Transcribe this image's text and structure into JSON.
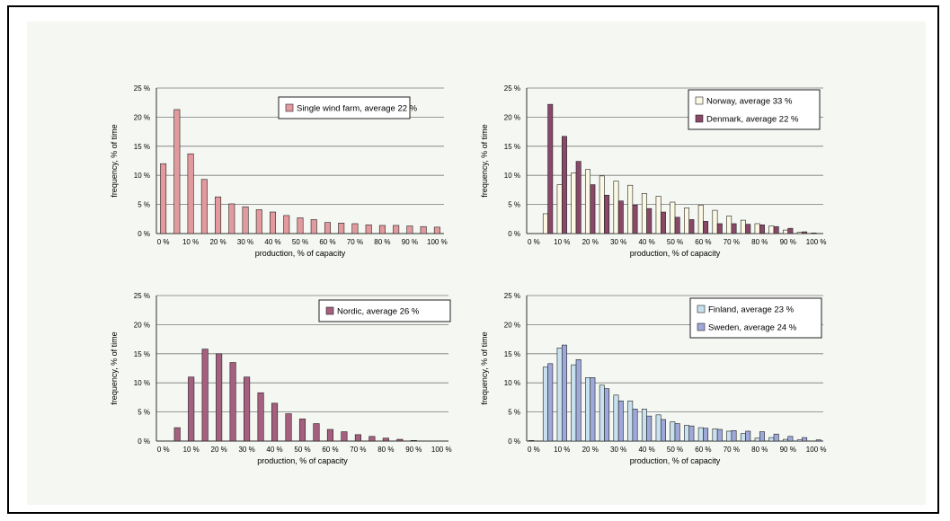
{
  "colors": {
    "background": "#f4f7f2",
    "grid": "#7a7a7a",
    "pink": "#e29a9e",
    "cream": "#fbf8e4",
    "plum": "#8a4868",
    "mauve": "#a4607e",
    "lightblue": "#c8e1ee",
    "periwinkle": "#9ea8d9",
    "bar_stroke": "#222222"
  },
  "chart_data": [
    {
      "type": "bar",
      "x": [
        0,
        5,
        10,
        15,
        20,
        25,
        30,
        35,
        40,
        45,
        50,
        55,
        60,
        65,
        70,
        75,
        80,
        85,
        90,
        95,
        100
      ],
      "x_tick_labels": [
        "0 %",
        "10 %",
        "20 %",
        "30 %",
        "40 %",
        "50 %",
        "60 %",
        "70 %",
        "80 %",
        "90 %",
        "100 %"
      ],
      "y_tick_labels": [
        "0 %",
        "5 %",
        "10 %",
        "15 %",
        "20 %",
        "25 %"
      ],
      "xlabel": "production, % of capacity",
      "ylabel": "frequency, % of time",
      "ylim": [
        0,
        25
      ],
      "grid": true,
      "legend_position": "top-right",
      "series": [
        {
          "name": "Single wind farm, average 22 %",
          "color": "#e29a9e",
          "values": [
            12.0,
            21.3,
            13.7,
            9.3,
            6.3,
            5.1,
            4.6,
            4.1,
            3.7,
            3.1,
            2.7,
            2.4,
            1.9,
            1.8,
            1.7,
            1.5,
            1.4,
            1.4,
            1.3,
            1.2,
            1.1
          ]
        }
      ]
    },
    {
      "type": "bar",
      "x": [
        0,
        5,
        10,
        15,
        20,
        25,
        30,
        35,
        40,
        45,
        50,
        55,
        60,
        65,
        70,
        75,
        80,
        85,
        90,
        95,
        100
      ],
      "x_tick_labels": [
        "0 %",
        "10 %",
        "20 %",
        "30 %",
        "40 %",
        "50 %",
        "60 %",
        "70 %",
        "80 %",
        "90 %",
        "100 %"
      ],
      "y_tick_labels": [
        "0 %",
        "5 %",
        "10 %",
        "15 %",
        "20 %",
        "25 %"
      ],
      "xlabel": "production, % of capacity",
      "ylabel": "frequency, % of time",
      "ylim": [
        0,
        25
      ],
      "grid": true,
      "legend_position": "top-right",
      "series": [
        {
          "name": "Norway, average 33 %",
          "color": "#fbf8e4",
          "values": [
            0,
            3.4,
            8.4,
            10.4,
            11.0,
            9.9,
            9.0,
            8.3,
            6.9,
            6.4,
            5.4,
            4.4,
            4.9,
            4.0,
            3.0,
            2.3,
            1.7,
            1.3,
            0.6,
            0.2,
            0.1
          ]
        },
        {
          "name": "Denmark, average 22 %",
          "color": "#8a4868",
          "values": [
            0,
            22.2,
            16.7,
            12.4,
            8.4,
            6.6,
            5.6,
            4.9,
            4.3,
            3.7,
            2.8,
            2.4,
            2.1,
            1.7,
            1.7,
            1.6,
            1.5,
            1.2,
            0.9,
            0.3,
            0
          ]
        }
      ]
    },
    {
      "type": "bar",
      "x": [
        0,
        5,
        10,
        15,
        20,
        25,
        30,
        35,
        40,
        45,
        50,
        55,
        60,
        65,
        70,
        75,
        80,
        85,
        90,
        95,
        100
      ],
      "x_tick_labels": [
        "0 %",
        "10 %",
        "20 %",
        "30 %",
        "40 %",
        "50 %",
        "60 %",
        "70 %",
        "80 %",
        "90 %",
        "100 %"
      ],
      "y_tick_labels": [
        "0 %",
        "5 %",
        "10 %",
        "15 %",
        "20 %",
        "25 %"
      ],
      "xlabel": "production, % of capacity",
      "ylabel": "frequency, % of time",
      "ylim": [
        0,
        25
      ],
      "grid": true,
      "legend_position": "top-right",
      "series": [
        {
          "name": "Nordic, average 26 %",
          "color": "#a4607e",
          "values": [
            0,
            2.3,
            11.0,
            15.8,
            15.0,
            13.5,
            11.0,
            8.3,
            6.5,
            4.7,
            3.8,
            3.0,
            2.0,
            1.6,
            1.1,
            0.8,
            0.5,
            0.3,
            0.1,
            0,
            0
          ]
        }
      ]
    },
    {
      "type": "bar",
      "x": [
        0,
        5,
        10,
        15,
        20,
        25,
        30,
        35,
        40,
        45,
        50,
        55,
        60,
        65,
        70,
        75,
        80,
        85,
        90,
        95,
        100
      ],
      "x_tick_labels": [
        "0 %",
        "10 %",
        "20 %",
        "30 %",
        "40 %",
        "50 %",
        "60 %",
        "70 %",
        "80 %",
        "90 %",
        "100 %"
      ],
      "y_tick_labels": [
        "0 %",
        "5 %",
        "10 %",
        "15 %",
        "20 %",
        "25 %"
      ],
      "xlabel": "production, % of capacity",
      "ylabel": "frequency, % of time",
      "ylim": [
        0,
        25
      ],
      "grid": true,
      "legend_position": "top-right",
      "series": [
        {
          "name": "Finland, average 23 %",
          "color": "#c8e1ee",
          "values": [
            0.1,
            12.7,
            16.0,
            13.1,
            10.9,
            9.6,
            7.9,
            6.9,
            5.5,
            4.5,
            3.3,
            2.7,
            2.3,
            2.1,
            1.7,
            1.3,
            0.5,
            0.6,
            0.3,
            0.2,
            0
          ]
        },
        {
          "name": "Sweden, average 24 %",
          "color": "#9ea8d9",
          "values": [
            0,
            13.3,
            16.5,
            14.0,
            10.9,
            9.0,
            6.9,
            5.5,
            4.3,
            3.7,
            3.0,
            2.6,
            2.2,
            2.0,
            1.8,
            1.7,
            1.6,
            1.2,
            0.8,
            0.6,
            0.2
          ]
        }
      ]
    }
  ]
}
